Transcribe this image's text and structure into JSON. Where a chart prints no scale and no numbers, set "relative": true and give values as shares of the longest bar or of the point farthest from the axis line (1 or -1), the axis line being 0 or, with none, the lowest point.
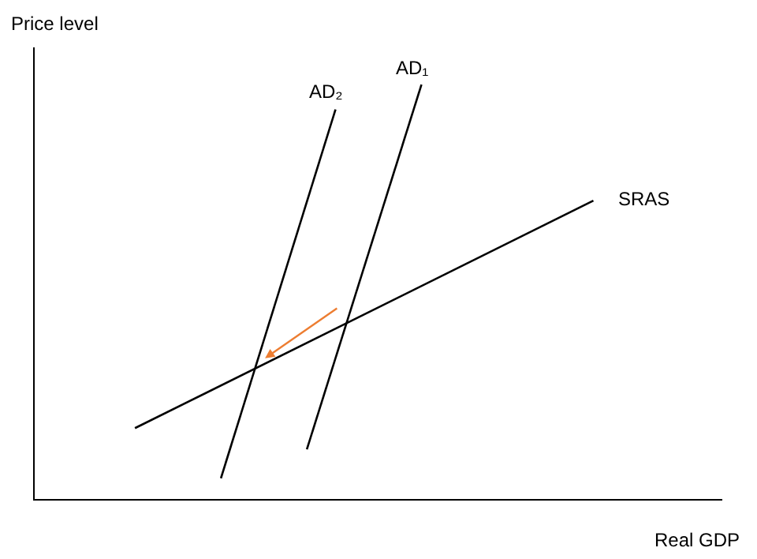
{
  "chart_data": {
    "type": "line",
    "relative": true,
    "xlabel": "Real GDP",
    "ylabel": "Price level",
    "legend": false,
    "marker": "none",
    "line_style": "solid",
    "categories": [
      null,
      null,
      null,
      null,
      null,
      null,
      null,
      null,
      null,
      null,
      null,
      null,
      null,
      null,
      null,
      null,
      null,
      null,
      null,
      null,
      null,
      null,
      null,
      null
    ],
    "series": [
      {
        "name": "SRAS",
        "color": "#000000",
        "values": [
          null,
          null,
          null,
          0.171,
          null,
          null,
          null,
          null,
          null,
          null,
          null,
          null,
          null,
          null,
          null,
          null,
          null,
          null,
          null,
          0.72,
          null,
          null,
          null,
          null
        ]
      },
      {
        "name": "AD₁",
        "color": "#000000",
        "values": [
          null,
          null,
          null,
          null,
          null,
          null,
          null,
          null,
          null,
          0.12,
          null,
          null,
          null,
          1.0,
          null,
          null,
          null,
          null,
          null,
          null,
          null,
          null,
          null,
          null
        ]
      },
      {
        "name": "AD₂",
        "color": "#000000",
        "values": [
          null,
          null,
          null,
          null,
          null,
          null,
          0.05,
          null,
          null,
          null,
          0.94,
          null,
          null,
          null,
          null,
          null,
          null,
          null,
          null,
          null,
          null,
          null,
          null,
          null
        ]
      }
    ]
  }
}
